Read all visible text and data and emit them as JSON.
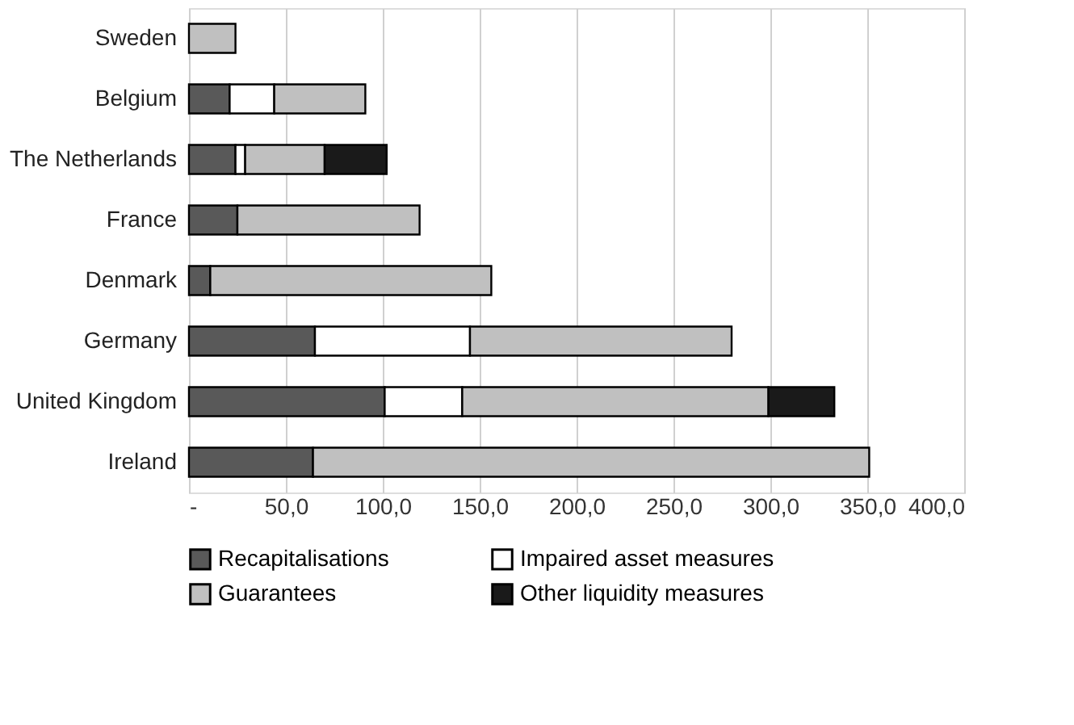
{
  "chart_data": {
    "type": "bar",
    "orientation": "horizontal",
    "stacked": true,
    "categories": [
      "Sweden",
      "Belgium",
      "The Netherlands",
      "France",
      "Denmark",
      "Germany",
      "United Kingdom",
      "Ireland"
    ],
    "series": [
      {
        "name": "Recapitalisations",
        "color": "#595959",
        "values": [
          null,
          21,
          24,
          25,
          11,
          65,
          101,
          64
        ]
      },
      {
        "name": "Impaired asset measures",
        "color": "#ffffff",
        "values": [
          null,
          23,
          5,
          null,
          null,
          80,
          40,
          null
        ]
      },
      {
        "name": "Guarantees",
        "color": "#c0c0c0",
        "values": [
          24,
          47,
          41,
          94,
          145,
          135,
          158,
          287
        ]
      },
      {
        "name": "Other liquidity measures",
        "color": "#1a1a1a",
        "values": [
          null,
          null,
          32,
          null,
          null,
          null,
          34,
          null
        ]
      }
    ],
    "xlim": [
      0,
      400
    ],
    "xticks": [
      {
        "value": 0,
        "label": "-"
      },
      {
        "value": 50,
        "label": "50,0"
      },
      {
        "value": 100,
        "label": "100,0"
      },
      {
        "value": 150,
        "label": "150,0"
      },
      {
        "value": 200,
        "label": "200,0"
      },
      {
        "value": 250,
        "label": "250,0"
      },
      {
        "value": 300,
        "label": "300,0"
      },
      {
        "value": 350,
        "label": "350,0"
      },
      {
        "value": 400,
        "label": "400,0"
      }
    ],
    "grid": "x",
    "legend": "bottom"
  }
}
